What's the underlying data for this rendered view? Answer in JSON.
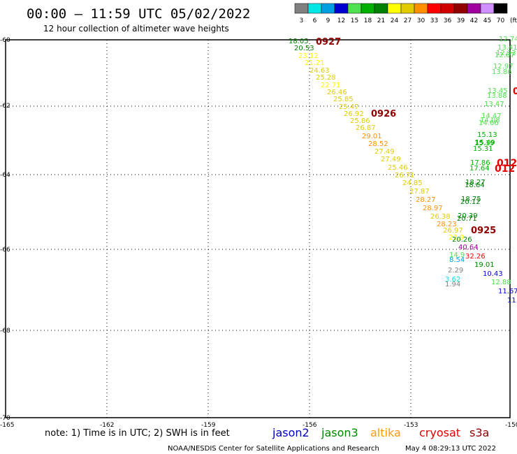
{
  "header": {
    "title": "00:00 — 11:59 UTC 05/02/2022",
    "subtitle": "12 hour collection of altimeter wave heights"
  },
  "legend": {
    "unit": "(ft)",
    "bins": [
      {
        "label": "3",
        "color": "#808080"
      },
      {
        "label": "6",
        "color": "#00e5e5"
      },
      {
        "label": "9",
        "color": "#00a0e0"
      },
      {
        "label": "12",
        "color": "#0000d0"
      },
      {
        "label": "15",
        "color": "#50e050"
      },
      {
        "label": "18",
        "color": "#00b000"
      },
      {
        "label": "21",
        "color": "#008000"
      },
      {
        "label": "24",
        "color": "#ffff00"
      },
      {
        "label": "27",
        "color": "#e0cc00"
      },
      {
        "label": "30",
        "color": "#ff9000"
      },
      {
        "label": "33",
        "color": "#ff0000"
      },
      {
        "label": "36",
        "color": "#d00000"
      },
      {
        "label": "39",
        "color": "#900000"
      },
      {
        "label": "42",
        "color": "#a000a0"
      },
      {
        "label": "45",
        "color": "#d090ff"
      },
      {
        "label": "70",
        "color": "#000000"
      }
    ]
  },
  "axes": {
    "lat": [
      "-60",
      "-62",
      "-64",
      "-66",
      "-68",
      "-70"
    ],
    "lon": [
      "-165",
      "-162",
      "-159",
      "-156",
      "-153",
      "-150"
    ]
  },
  "footer": {
    "note": "note: 1) Time is in UTC; 2) SWH is in feet",
    "satellites": [
      {
        "name": "jason2",
        "color": "#0000c0"
      },
      {
        "name": "jason3",
        "color": "#008800"
      },
      {
        "name": "altika",
        "color": "#ff9900"
      },
      {
        "name": "cryosat",
        "color": "#e00000"
      },
      {
        "name": "s3a",
        "color": "#900000"
      }
    ],
    "credit": "NOAA/NESDIS Center for Satellite Applications and Research",
    "timestamp": "May  4 08:29:13 UTC 2022"
  },
  "tracks": {
    "time_labels": [
      {
        "text": "0927",
        "color": "#900000"
      },
      {
        "text": "0926",
        "color": "#900000"
      },
      {
        "text": "0925",
        "color": "#900000"
      },
      {
        "text": "012",
        "color": "#e00000"
      },
      {
        "text": "012",
        "color": "#e00000"
      },
      {
        "text": "0",
        "color": "#e00000"
      }
    ],
    "main": [
      {
        "text": "18.05",
        "color": "#008000"
      },
      {
        "text": "20.53",
        "color": "#008000"
      },
      {
        "text": "23.12",
        "color": "#ffff00"
      },
      {
        "text": "21.21",
        "color": "#ffff00"
      },
      {
        "text": "24.63",
        "color": "#e0cc00"
      },
      {
        "text": "25.28",
        "color": "#e0cc00"
      },
      {
        "text": "22.71",
        "color": "#ffff00"
      },
      {
        "text": "26.46",
        "color": "#e0cc00"
      },
      {
        "text": "25.85",
        "color": "#e0cc00"
      },
      {
        "text": "25.47",
        "color": "#e0cc00"
      },
      {
        "text": "26.92",
        "color": "#e0cc00"
      },
      {
        "text": "25.86",
        "color": "#e0cc00"
      },
      {
        "text": "26.87",
        "color": "#e0cc00"
      },
      {
        "text": "29.01",
        "color": "#ff9000"
      },
      {
        "text": "28.52",
        "color": "#ff9000"
      },
      {
        "text": "27.49",
        "color": "#e0cc00"
      },
      {
        "text": "27.49",
        "color": "#e0cc00"
      },
      {
        "text": "25.46",
        "color": "#e0cc00"
      },
      {
        "text": "26.71",
        "color": "#e0cc00"
      },
      {
        "text": "24.85",
        "color": "#e0cc00"
      },
      {
        "text": "27.87",
        "color": "#e0cc00"
      },
      {
        "text": "28.27",
        "color": "#ff9000"
      },
      {
        "text": "28.97",
        "color": "#ff9000"
      },
      {
        "text": "26.38",
        "color": "#e0cc00"
      },
      {
        "text": "28.23",
        "color": "#ff9000"
      },
      {
        "text": "26.97",
        "color": "#e0cc00"
      },
      {
        "text": "22.9",
        "color": "#ffff00"
      },
      {
        "text": "20.26",
        "color": "#008000"
      },
      {
        "text": "40.64",
        "color": "#a000a0"
      },
      {
        "text": "32.26",
        "color": "#ff0000"
      },
      {
        "text": "14.9",
        "color": "#50e050"
      },
      {
        "text": "8.54",
        "color": "#00a0e0"
      },
      {
        "text": "2.29",
        "color": "#808080"
      },
      {
        "text": "3.62",
        "color": "#00e5e5"
      },
      {
        "text": "1.94",
        "color": "#808080"
      },
      {
        "text": "19.01",
        "color": "#008000"
      },
      {
        "text": "10.43",
        "color": "#0000d0"
      },
      {
        "text": "12.88",
        "color": "#50e050"
      },
      {
        "text": "11.67",
        "color": "#0000d0"
      },
      {
        "text": "11.",
        "color": "#0000d0"
      }
    ],
    "right": [
      {
        "text": "12.74",
        "color": "#50e050"
      },
      {
        "text": "13.41",
        "color": "#50e050"
      },
      {
        "text": "12.93",
        "color": "#50e050"
      },
      {
        "text": "12.67",
        "color": "#50e050"
      },
      {
        "text": "12.97",
        "color": "#50e050"
      },
      {
        "text": "13.86",
        "color": "#50e050"
      },
      {
        "text": "13.45",
        "color": "#50e050"
      },
      {
        "text": "13.88",
        "color": "#50e050"
      },
      {
        "text": "13.47",
        "color": "#50e050"
      },
      {
        "text": "14.47",
        "color": "#50e050"
      },
      {
        "text": "14.08",
        "color": "#50e050"
      },
      {
        "text": "14.66",
        "color": "#50e050"
      },
      {
        "text": "15.13",
        "color": "#00b000"
      },
      {
        "text": "15.49",
        "color": "#00b000"
      },
      {
        "text": "15.19",
        "color": "#00b000"
      },
      {
        "text": "15.31",
        "color": "#00b000"
      },
      {
        "text": "17.86",
        "color": "#00b000"
      },
      {
        "text": "17.64",
        "color": "#00b000"
      },
      {
        "text": "18.27",
        "color": "#008000"
      },
      {
        "text": "18.64",
        "color": "#008000"
      },
      {
        "text": "18.75",
        "color": "#008000"
      },
      {
        "text": "20.12",
        "color": "#008000"
      },
      {
        "text": "20.39",
        "color": "#008000"
      },
      {
        "text": "20.71",
        "color": "#008000"
      }
    ]
  }
}
